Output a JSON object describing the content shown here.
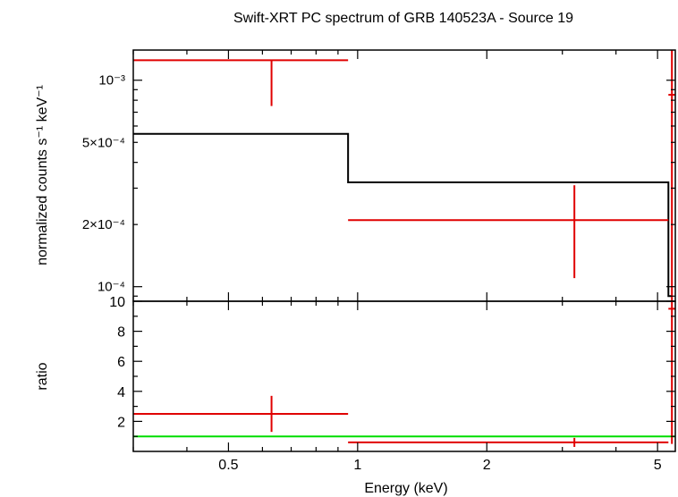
{
  "chart_data": [
    {
      "type": "scatter",
      "panel": "spectrum",
      "title": "Swift-XRT PC spectrum of GRB 140523A - Source 19",
      "xlabel": "",
      "ylabel": "normalized counts s⁻¹ keV⁻¹",
      "x_scale": "log",
      "y_scale": "log",
      "xlim": [
        0.3,
        5.5
      ],
      "ylim": [
        8.5e-05,
        0.0014
      ],
      "y_ticks": [
        {
          "value": 0.001,
          "label": "10⁻³"
        },
        {
          "value": 0.0005,
          "label": "5×10⁻⁴"
        },
        {
          "value": 0.0002,
          "label": "2×10⁻⁴"
        },
        {
          "value": 0.0001,
          "label": "10⁻⁴"
        }
      ],
      "data_points": [
        {
          "x": 0.63,
          "x_lo": 0.3,
          "x_hi": 0.95,
          "y": 0.00125,
          "y_lo": 0.00075,
          "y_hi": 0.00125
        },
        {
          "x": 3.2,
          "x_lo": 0.95,
          "x_hi": 5.3,
          "y": 0.00021,
          "y_lo": 0.00011,
          "y_hi": 0.00031
        },
        {
          "x": 5.4,
          "x_lo": 5.3,
          "x_hi": 5.5,
          "y": 0.00085,
          "y_lo": 8.5e-05,
          "y_hi": 0.0014
        }
      ],
      "model_steps": [
        {
          "x_lo": 0.3,
          "x_hi": 0.95,
          "y": 0.00055
        },
        {
          "x_lo": 0.95,
          "x_hi": 5.3,
          "y": 0.00032
        },
        {
          "x_lo": 5.3,
          "x_hi": 5.4,
          "y": 9e-05
        }
      ],
      "colors": {
        "data": "#e00000",
        "model": "#000000"
      }
    },
    {
      "type": "scatter",
      "panel": "ratio",
      "xlabel": "Energy (keV)",
      "ylabel": "ratio",
      "x_scale": "log",
      "xlim": [
        0.3,
        5.5
      ],
      "ylim": [
        0,
        10
      ],
      "y_ticks": [
        2,
        4,
        6,
        8,
        10
      ],
      "x_ticks": [
        {
          "value": 0.5,
          "label": "0.5"
        },
        {
          "value": 1,
          "label": "1"
        },
        {
          "value": 2,
          "label": "2"
        },
        {
          "value": 5,
          "label": "5"
        }
      ],
      "data_points": [
        {
          "x": 0.63,
          "x_lo": 0.3,
          "x_hi": 0.95,
          "y": 2.5,
          "y_lo": 1.3,
          "y_hi": 3.7
        },
        {
          "x": 3.2,
          "x_lo": 0.95,
          "x_hi": 5.3,
          "y": 0.6,
          "y_lo": 0.3,
          "y_hi": 0.9
        },
        {
          "x": 5.4,
          "x_lo": 5.3,
          "x_hi": 5.5,
          "y": 9.5,
          "y_lo": 0.5,
          "y_hi": 10
        }
      ],
      "reference_line": 1,
      "colors": {
        "data": "#e00000",
        "reference": "#00dd00"
      }
    }
  ]
}
